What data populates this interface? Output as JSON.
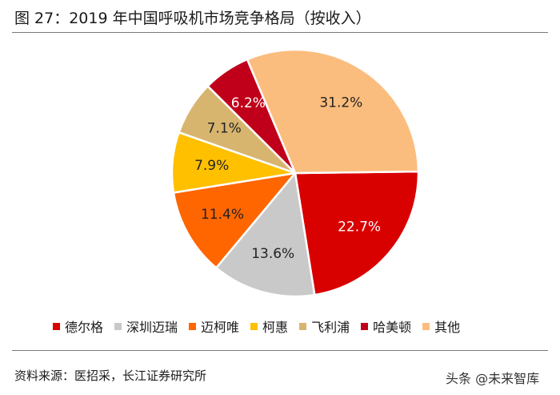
{
  "chart_data": {
    "type": "pie",
    "title": "图 27：2019 年中国呼吸机市场竞争格局（按收入）",
    "categories": [
      "德尔格",
      "深圳迈瑞",
      "迈柯唯",
      "柯惠",
      "飞利浦",
      "哈美顿",
      "其他"
    ],
    "values": [
      22.7,
      13.6,
      11.4,
      7.9,
      7.1,
      6.2,
      31.2
    ],
    "labels": [
      "22.7%",
      "13.6%",
      "11.4%",
      "7.9%",
      "7.1%",
      "6.2%",
      "31.2%"
    ],
    "colors": [
      "#d90000",
      "#c9c9c9",
      "#ff6600",
      "#ffc000",
      "#d8b56f",
      "#c0001a",
      "#fbbd7d"
    ],
    "label_colors": [
      "#ffffff",
      "#222222",
      "#222222",
      "#222222",
      "#222222",
      "#ffffff",
      "#222222"
    ],
    "legend_position": "bottom",
    "start": "slightly above 3 o'clock",
    "direction": "clockwise"
  },
  "source": "资料来源：医招采，长江证券研究所",
  "watermark": "头条 @未来智库"
}
